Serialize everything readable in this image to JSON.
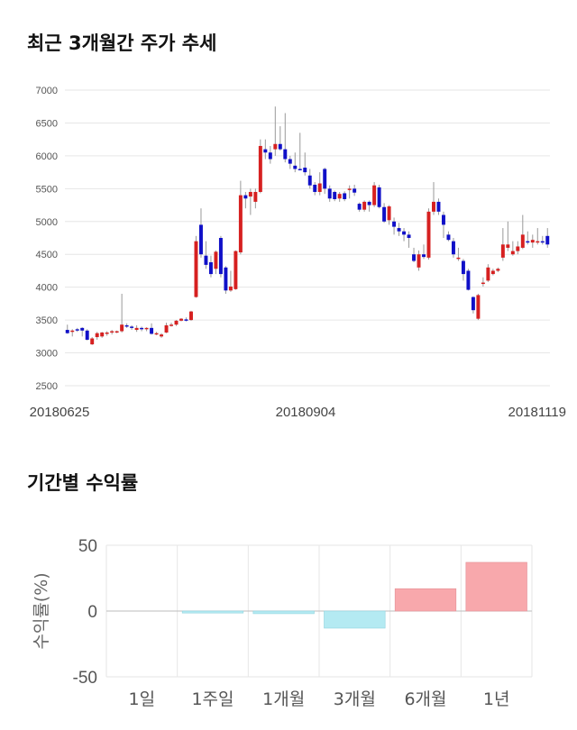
{
  "section1": {
    "title": "최근 3개월간 주가 추세"
  },
  "section2": {
    "title": "기간별 수익률"
  },
  "colors": {
    "up": "#d62020",
    "down": "#1010c8",
    "pos_bar": "#f8a8ac",
    "neg_bar": "#b4eaf2",
    "grid": "#e6e6e6"
  },
  "chart_data": [
    {
      "type": "candlestick",
      "ylim": [
        2500,
        7000
      ],
      "yticks": [
        "7000",
        "6500",
        "6000",
        "5500",
        "5000",
        "4500",
        "4000",
        "3500",
        "3000",
        "2500"
      ],
      "xlabels": [
        "20180625",
        "20180904",
        "20181119"
      ],
      "candles": [
        [
          3350,
          3300,
          3430,
          3290
        ],
        [
          3330,
          3340,
          3360,
          3250
        ],
        [
          3360,
          3340,
          3380,
          3320
        ],
        [
          3380,
          3340,
          3390,
          3250
        ],
        [
          3340,
          3200,
          3360,
          3190
        ],
        [
          3130,
          3220,
          3240,
          3120
        ],
        [
          3240,
          3300,
          3320,
          3200
        ],
        [
          3250,
          3310,
          3320,
          3230
        ],
        [
          3300,
          3310,
          3330,
          3260
        ],
        [
          3310,
          3330,
          3350,
          3280
        ],
        [
          3320,
          3330,
          3340,
          3300
        ],
        [
          3330,
          3430,
          3900,
          3310
        ],
        [
          3420,
          3410,
          3450,
          3380
        ],
        [
          3400,
          3380,
          3420,
          3350
        ],
        [
          3350,
          3380,
          3420,
          3320
        ],
        [
          3380,
          3360,
          3400,
          3330
        ],
        [
          3360,
          3380,
          3390,
          3330
        ],
        [
          3380,
          3290,
          3450,
          3280
        ],
        [
          3290,
          3300,
          3320,
          3270
        ],
        [
          3250,
          3280,
          3300,
          3230
        ],
        [
          3310,
          3420,
          3460,
          3300
        ],
        [
          3420,
          3430,
          3460,
          3400
        ],
        [
          3430,
          3490,
          3500,
          3410
        ],
        [
          3490,
          3520,
          3530,
          3480
        ],
        [
          3510,
          3500,
          3540,
          3480
        ],
        [
          3500,
          3630,
          3640,
          3490
        ],
        [
          3850,
          4700,
          4780,
          3840
        ],
        [
          4950,
          4500,
          5200,
          4450
        ],
        [
          4480,
          4340,
          4700,
          4280
        ],
        [
          4380,
          4200,
          4480,
          4150
        ],
        [
          4280,
          4540,
          4560,
          4200
        ],
        [
          4750,
          4200,
          4780,
          4150
        ],
        [
          4300,
          3950,
          4320,
          3900
        ],
        [
          3950,
          4010,
          4250,
          3930
        ],
        [
          3970,
          4550,
          4560,
          3960
        ],
        [
          4530,
          5400,
          5620,
          4500
        ],
        [
          5400,
          5350,
          5450,
          5200
        ],
        [
          5380,
          5450,
          5500,
          5100
        ],
        [
          5300,
          5450,
          5500,
          5200
        ],
        [
          5450,
          6150,
          6250,
          5430
        ],
        [
          6100,
          6050,
          6250,
          5950
        ],
        [
          6050,
          5950,
          6150,
          5880
        ],
        [
          6100,
          6180,
          6750,
          6000
        ],
        [
          6180,
          6100,
          6450,
          6080
        ],
        [
          6100,
          5950,
          6650,
          5900
        ],
        [
          5950,
          5880,
          6000,
          5800
        ],
        [
          5850,
          5800,
          6050,
          5750
        ],
        [
          5800,
          5780,
          6350,
          5780
        ],
        [
          5820,
          5750,
          6050,
          5700
        ],
        [
          5700,
          5550,
          5800,
          5500
        ],
        [
          5560,
          5450,
          5600,
          5400
        ],
        [
          5450,
          5580,
          5750,
          5400
        ],
        [
          5800,
          5500,
          5820,
          5420
        ],
        [
          5500,
          5350,
          5550,
          5300
        ],
        [
          5450,
          5340,
          5470,
          5310
        ],
        [
          5350,
          5420,
          5450,
          5300
        ],
        [
          5430,
          5340,
          5460,
          5310
        ],
        [
          5480,
          5500,
          5550,
          5350
        ],
        [
          5500,
          5440,
          5560,
          5390
        ],
        [
          5270,
          5180,
          5290,
          5150
        ],
        [
          5180,
          5300,
          5320,
          5150
        ],
        [
          5300,
          5250,
          5320,
          5150
        ],
        [
          5250,
          5550,
          5600,
          5220
        ],
        [
          5520,
          5220,
          5560,
          5200
        ],
        [
          5220,
          5000,
          5280,
          4980
        ],
        [
          5020,
          5230,
          5250,
          4950
        ],
        [
          5000,
          4920,
          5060,
          4800
        ],
        [
          4900,
          4850,
          4980,
          4780
        ],
        [
          4850,
          4800,
          4900,
          4700
        ],
        [
          4800,
          4750,
          4850,
          4600
        ],
        [
          4500,
          4400,
          4600,
          4380
        ],
        [
          4300,
          4500,
          4560,
          4250
        ],
        [
          4500,
          4460,
          4650,
          4430
        ],
        [
          4450,
          5150,
          5200,
          4420
        ],
        [
          5150,
          5300,
          5600,
          5100
        ],
        [
          5300,
          5150,
          5350,
          5100
        ],
        [
          5100,
          4950,
          5150,
          4750
        ],
        [
          4800,
          4720,
          4850,
          4700
        ],
        [
          4700,
          4500,
          4750,
          4450
        ],
        [
          4450,
          4450,
          4600,
          4400
        ],
        [
          4400,
          4200,
          4430,
          4100
        ],
        [
          4250,
          3960,
          4280,
          3950
        ],
        [
          3850,
          3650,
          3860,
          3600
        ],
        [
          3520,
          3880,
          3900,
          3500
        ],
        [
          4050,
          4070,
          4150,
          4010
        ],
        [
          4100,
          4300,
          4350,
          4080
        ],
        [
          4200,
          4250,
          4280,
          4180
        ],
        [
          4250,
          4280,
          4300,
          4230
        ],
        [
          4450,
          4650,
          4900,
          4400
        ],
        [
          4600,
          4650,
          5000,
          4550
        ],
        [
          4500,
          4550,
          4700,
          4480
        ],
        [
          4550,
          4620,
          4700,
          4500
        ],
        [
          4600,
          4800,
          5100,
          4580
        ],
        [
          4700,
          4690,
          4850,
          4650
        ],
        [
          4680,
          4720,
          4800,
          4600
        ],
        [
          4700,
          4700,
          4900,
          4650
        ],
        [
          4700,
          4680,
          4780,
          4650
        ],
        [
          4780,
          4650,
          4900,
          4600
        ]
      ]
    },
    {
      "type": "bar",
      "ylabel": "수익률(%)",
      "ylim": [
        -50,
        50
      ],
      "yticks": [
        "50",
        "0",
        "-50"
      ],
      "categories": [
        "1일",
        "1주일",
        "1개월",
        "3개월",
        "6개월",
        "1년"
      ],
      "values": [
        0,
        -1.5,
        -2,
        -13,
        17,
        37
      ]
    }
  ]
}
